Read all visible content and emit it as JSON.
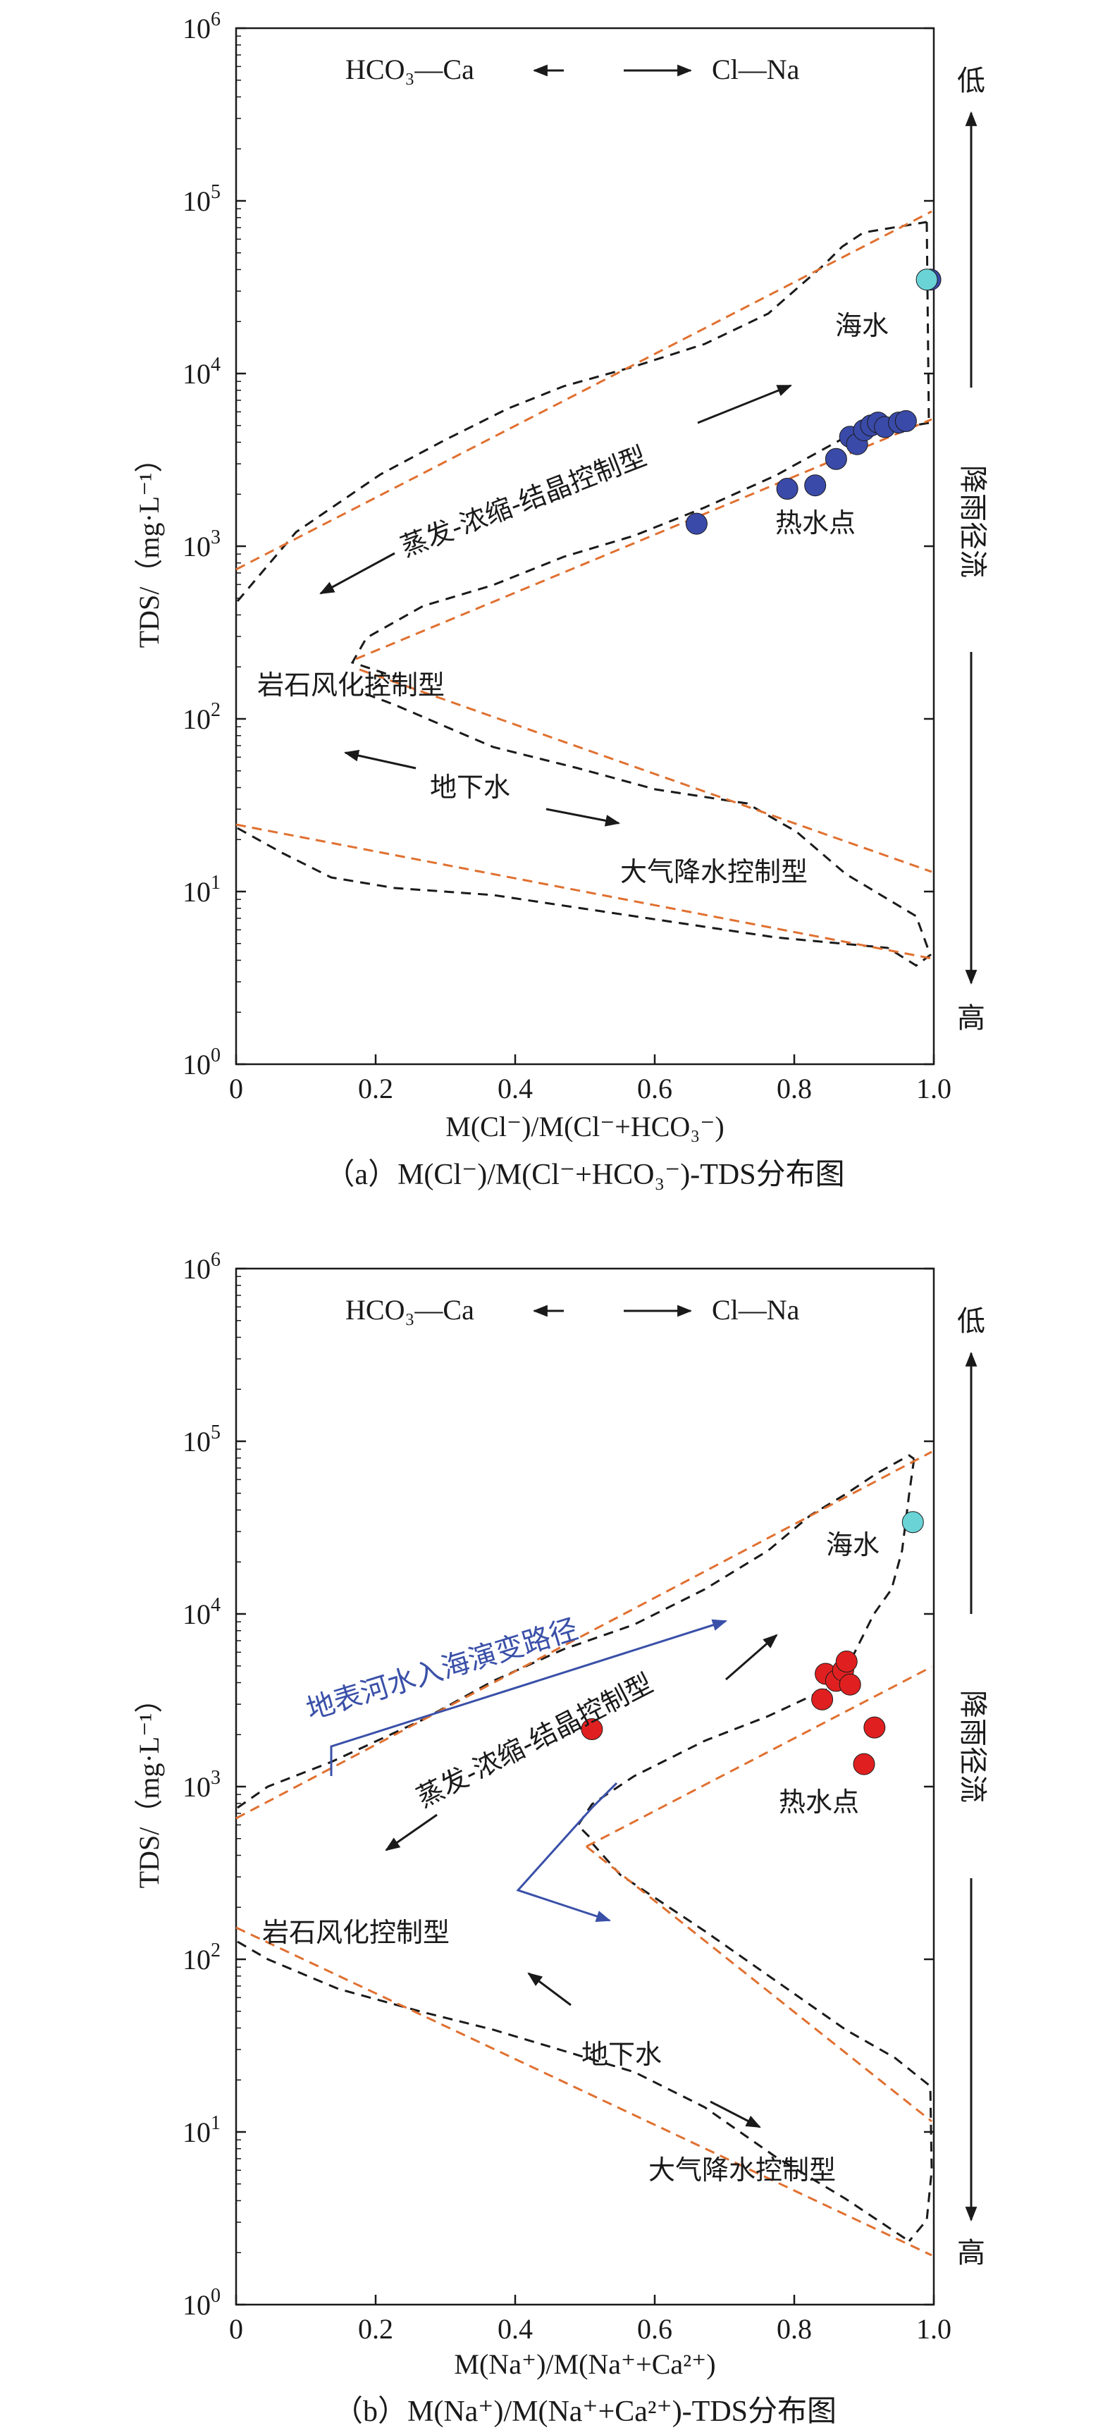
{
  "chart_data": [
    {
      "type": "scatter",
      "panel": "a",
      "caption": "（a）M(Cl⁻)/M(Cl⁻+HCO₃⁻)-TDS分布图",
      "xlabel": "M(Cl⁻)/M(Cl⁻+HCO₃⁻)",
      "ylabel": "TDS/（mg·L⁻¹）",
      "x_scale": "linear",
      "y_scale": "log",
      "xlim": [
        0,
        1.0
      ],
      "ylim": [
        1,
        1000000
      ],
      "x_ticks": [
        "0",
        "0.2",
        "0.4",
        "0.6",
        "0.8",
        "1.0"
      ],
      "y_tick_exponents": [
        "0",
        "1",
        "2",
        "3",
        "4",
        "5",
        "6"
      ],
      "ion_labels": {
        "left": "HCO₃—Ca",
        "right": "Cl—Na"
      },
      "right_axis": {
        "top": "低",
        "middle": "降雨径流",
        "bottom": "高"
      },
      "annotations": {
        "seawater": "海水",
        "hot_springs": "热水点",
        "evaporation": "蒸发-浓缩-结晶控制型",
        "rock_weathering": "岩石风化控制型",
        "groundwater": "地下水",
        "precipitation": "大气降水控制型"
      },
      "series": [
        {
          "marker_color": "#3a4aa8",
          "points": [
            [
              0.66,
              1350
            ],
            [
              0.79,
              2150
            ],
            [
              0.83,
              2250
            ],
            [
              0.86,
              3200
            ],
            [
              0.88,
              4300
            ],
            [
              0.89,
              3900
            ],
            [
              0.9,
              4700
            ],
            [
              0.91,
              5000
            ],
            [
              0.92,
              5200
            ],
            [
              0.93,
              4900
            ],
            [
              0.95,
              5200
            ],
            [
              0.96,
              5300
            ],
            [
              0.995,
              35000
            ]
          ]
        },
        {
          "marker_color": "#6ad3d6",
          "points": [
            [
              0.99,
              35000
            ]
          ]
        }
      ]
    },
    {
      "type": "scatter",
      "panel": "b",
      "caption": "（b）M(Na⁺)/M(Na⁺+Ca²⁺)-TDS分布图",
      "xlabel": "M(Na⁺)/M(Na⁺+Ca²⁺)",
      "ylabel": "TDS/（mg·L⁻¹）",
      "x_scale": "linear",
      "y_scale": "log",
      "xlim": [
        0,
        1.0
      ],
      "ylim": [
        1,
        1000000
      ],
      "x_ticks": [
        "0",
        "0.2",
        "0.4",
        "0.6",
        "0.8",
        "1.0"
      ],
      "y_tick_exponents": [
        "0",
        "1",
        "2",
        "3",
        "4",
        "5",
        "6"
      ],
      "ion_labels": {
        "left": "HCO₃—Ca",
        "right": "Cl—Na"
      },
      "right_axis": {
        "top": "低",
        "middle": "降雨径流",
        "bottom": "高"
      },
      "annotations": {
        "seawater": "海水",
        "hot_springs": "热水点",
        "evaporation": "蒸发-浓缩-结晶控制型",
        "rock_weathering": "岩石风化控制型",
        "groundwater": "地下水",
        "precipitation": "大气降水控制型",
        "river_path": "地表河水入海演变路径"
      },
      "series": [
        {
          "marker_color": "#e02020",
          "points": [
            [
              0.51,
              2150
            ],
            [
              0.84,
              3200
            ],
            [
              0.845,
              4500
            ],
            [
              0.86,
              4100
            ],
            [
              0.87,
              4700
            ],
            [
              0.875,
              5300
            ],
            [
              0.88,
              3900
            ],
            [
              0.9,
              1350
            ],
            [
              0.915,
              2200
            ]
          ]
        },
        {
          "marker_color": "#6ad3d6",
          "points": [
            [
              0.97,
              34000
            ]
          ]
        }
      ]
    }
  ],
  "colors": {
    "envelope": "#1a1a1a",
    "trend": "#e07030",
    "river_path": "#3a50a8"
  }
}
